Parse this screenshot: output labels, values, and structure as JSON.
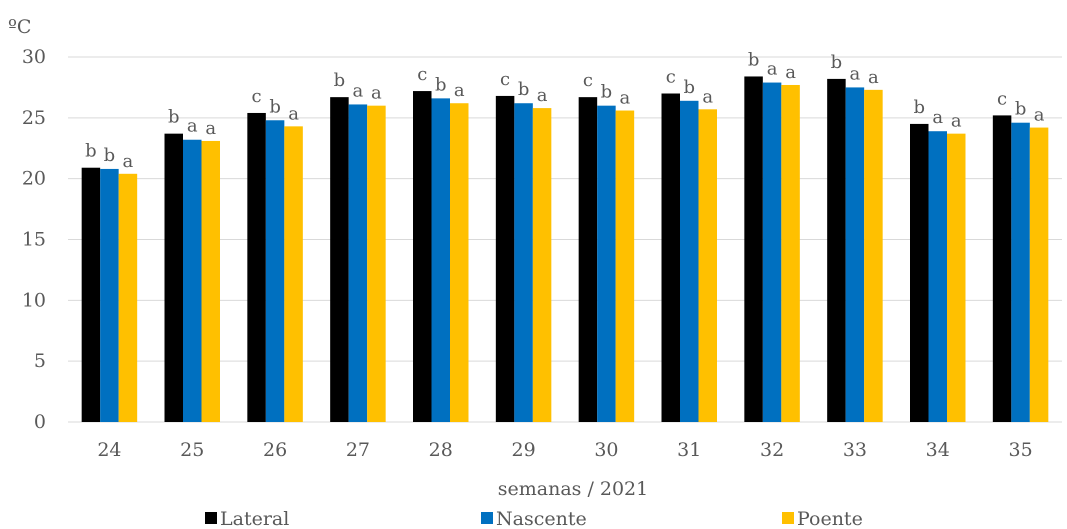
{
  "chart_data": {
    "type": "bar",
    "title": "",
    "ylabel": "ºC",
    "xlabel": "semanas / 2021",
    "ylim": [
      0,
      30
    ],
    "yticks": [
      0,
      5,
      10,
      15,
      20,
      25,
      30
    ],
    "grid": true,
    "legend_position": "bottom",
    "categories": [
      "24",
      "25",
      "26",
      "27",
      "28",
      "29",
      "30",
      "31",
      "32",
      "33",
      "34",
      "35"
    ],
    "series": [
      {
        "name": "Lateral",
        "color": "#000000",
        "values": [
          20.9,
          23.7,
          25.4,
          26.7,
          27.2,
          26.8,
          26.7,
          27.0,
          28.4,
          28.2,
          24.5,
          25.2
        ],
        "labels": [
          "b",
          "b",
          "c",
          "b",
          "c",
          "c",
          "c",
          "c",
          "b",
          "b",
          "b",
          "c"
        ]
      },
      {
        "name": "Nascente",
        "color": "#0070c0",
        "values": [
          20.8,
          23.2,
          24.8,
          26.1,
          26.6,
          26.2,
          26.0,
          26.4,
          27.9,
          27.5,
          23.9,
          24.6
        ],
        "labels": [
          "b",
          "a",
          "b",
          "a",
          "b",
          "b",
          "b",
          "b",
          "a",
          "a",
          "a",
          "b"
        ]
      },
      {
        "name": "Poente",
        "color": "#ffc000",
        "values": [
          20.4,
          23.1,
          24.3,
          26.0,
          26.2,
          25.8,
          25.6,
          25.7,
          27.7,
          27.3,
          23.7,
          24.2
        ],
        "labels": [
          "a",
          "a",
          "a",
          "a",
          "a",
          "a",
          "a",
          "a",
          "a",
          "a",
          "a",
          "a"
        ]
      }
    ]
  }
}
